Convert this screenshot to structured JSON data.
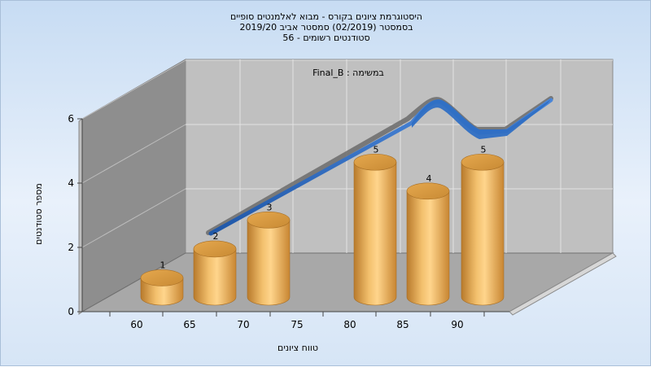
{
  "chart_data": {
    "type": "bar",
    "title_lines": [
      "היסטוגרמת ציונים בקורס - מבוא לאלמנטים סופיים",
      "בסמסטר  (02/2019)  סמסטר אביב 2019/20",
      "סטודנטים רשומים - 56"
    ],
    "annotation": "Final_B : במשימה",
    "xlabel": "טווח ציונים",
    "ylabel": "מספר סטודנטים",
    "x_ticks": [
      "60",
      "65",
      "70",
      "75",
      "80",
      "85",
      "90"
    ],
    "y_ticks": [
      "0",
      "2",
      "4",
      "6"
    ],
    "ylim": [
      0,
      6
    ],
    "bars": [
      {
        "category": "60",
        "value": 1,
        "label": "1"
      },
      {
        "category": "65",
        "value": 2,
        "label": "2"
      },
      {
        "category": "70",
        "value": 3,
        "label": "3"
      },
      {
        "category": "80",
        "value": 5,
        "label": "5"
      },
      {
        "category": "85",
        "value": 4,
        "label": "4"
      },
      {
        "category": "90",
        "value": 5,
        "label": "5"
      }
    ],
    "grid": true,
    "colors": {
      "bar": "#e8a84a",
      "curve": "#2f6fc4",
      "back_wall": "#c0c0c0",
      "side_wall": "#8e8e8e",
      "floor": "#a9a9a9"
    }
  }
}
